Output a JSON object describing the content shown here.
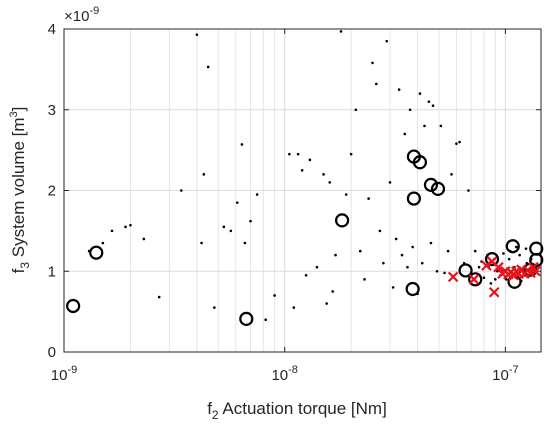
{
  "chart_data": {
    "type": "scatter",
    "title": "",
    "xlabel": {
      "prefix": "f",
      "sub": "2",
      "text": " Actuation torque [Nm]"
    },
    "ylabel": {
      "prefix": "f",
      "sub": "3",
      "text": " System volume [m",
      "sup": "3",
      "suffix": "]"
    },
    "exponent_label": {
      "base": "×10",
      "exp": "-9"
    },
    "x_scale": "log",
    "xlim": [
      1e-09,
      1.45e-07
    ],
    "ylim": [
      0,
      4
    ],
    "x_ticks": [
      {
        "value": 1e-09,
        "base": "10",
        "exp": "-9"
      },
      {
        "value": 1e-08,
        "base": "10",
        "exp": "-8"
      },
      {
        "value": 1e-07,
        "base": "10",
        "exp": "-7"
      }
    ],
    "y_ticks": [
      "0",
      "1",
      "2",
      "3",
      "4"
    ],
    "y_tick_values": [
      0,
      1,
      2,
      3,
      4
    ],
    "grid": true,
    "colors": {
      "dots": "#000000",
      "circles": "#000000",
      "crosses": "#e8121b",
      "grid": "#e5e5e5",
      "axes": "#262626"
    },
    "series": [
      {
        "marker": "dot",
        "points": [
          [
            1.3e-09,
            1.25
          ],
          [
            1.5e-09,
            1.35
          ],
          [
            1.65e-09,
            1.5
          ],
          [
            1.9e-09,
            1.55
          ],
          [
            2e-09,
            1.57
          ],
          [
            2.3e-09,
            1.4
          ],
          [
            2.7e-09,
            0.68
          ],
          [
            3.4e-09,
            2.0
          ],
          [
            4e-09,
            3.93
          ],
          [
            4.2e-09,
            1.35
          ],
          [
            4.3e-09,
            2.2
          ],
          [
            4.5e-09,
            3.53
          ],
          [
            4.8e-09,
            0.55
          ],
          [
            5.3e-09,
            1.55
          ],
          [
            5.7e-09,
            1.5
          ],
          [
            6.1e-09,
            1.85
          ],
          [
            6.4e-09,
            2.57
          ],
          [
            6.6e-09,
            1.35
          ],
          [
            7e-09,
            1.62
          ],
          [
            7.5e-09,
            1.95
          ],
          [
            8.2e-09,
            0.4
          ],
          [
            9e-09,
            0.7
          ],
          [
            1.05e-08,
            2.45
          ],
          [
            1.1e-08,
            0.55
          ],
          [
            1.15e-08,
            2.45
          ],
          [
            1.2e-08,
            2.25
          ],
          [
            1.25e-08,
            0.95
          ],
          [
            1.3e-08,
            2.38
          ],
          [
            1.4e-08,
            1.05
          ],
          [
            1.5e-08,
            2.2
          ],
          [
            1.55e-08,
            0.6
          ],
          [
            1.6e-08,
            2.1
          ],
          [
            1.65e-08,
            0.75
          ],
          [
            1.7e-08,
            1.2
          ],
          [
            1.8e-08,
            3.97
          ],
          [
            1.9e-08,
            1.95
          ],
          [
            2e-08,
            2.45
          ],
          [
            2.1e-08,
            3.0
          ],
          [
            2.2e-08,
            1.25
          ],
          [
            2.3e-08,
            0.9
          ],
          [
            2.4e-08,
            1.9
          ],
          [
            2.5e-08,
            3.58
          ],
          [
            2.6e-08,
            3.32
          ],
          [
            2.7e-08,
            1.5
          ],
          [
            2.8e-08,
            1.1
          ],
          [
            2.9e-08,
            3.85
          ],
          [
            3e-08,
            2.1
          ],
          [
            3.1e-08,
            0.8
          ],
          [
            3.2e-08,
            1.4
          ],
          [
            3.3e-08,
            3.25
          ],
          [
            3.4e-08,
            1.2
          ],
          [
            3.5e-08,
            2.7
          ],
          [
            3.6e-08,
            1.05
          ],
          [
            3.7e-08,
            3.0
          ],
          [
            3.8e-08,
            1.3
          ],
          [
            4e-08,
            0.72
          ],
          [
            4.1e-08,
            3.2
          ],
          [
            4.2e-08,
            1.1
          ],
          [
            4.3e-08,
            2.8
          ],
          [
            4.5e-08,
            3.1
          ],
          [
            4.6e-08,
            1.35
          ],
          [
            4.7e-08,
            3.05
          ],
          [
            4.9e-08,
            1.0
          ],
          [
            5.1e-08,
            2.8
          ],
          [
            5.3e-08,
            0.98
          ],
          [
            5.5e-08,
            1.25
          ],
          [
            5.7e-08,
            2.2
          ],
          [
            6e-08,
            2.58
          ],
          [
            6.2e-08,
            2.6
          ],
          [
            6.5e-08,
            1.1
          ],
          [
            6.8e-08,
            2.0
          ],
          [
            7e-08,
            0.95
          ],
          [
            7.3e-08,
            1.25
          ],
          [
            7.6e-08,
            1.05
          ],
          [
            8e-08,
            0.92
          ],
          [
            8.3e-08,
            1.2
          ],
          [
            8.6e-08,
            0.85
          ],
          [
            8.9e-08,
            1.15
          ],
          [
            9.2e-08,
            1.0
          ],
          [
            9.5e-08,
            0.95
          ],
          [
            9.8e-08,
            1.22
          ],
          [
            1.01e-07,
            0.9
          ],
          [
            1.04e-07,
            1.15
          ],
          [
            1.07e-07,
            0.98
          ],
          [
            1.1e-07,
            1.05
          ],
          [
            1.13e-07,
            0.92
          ],
          [
            1.16e-07,
            1.2
          ],
          [
            1.19e-07,
            1.02
          ],
          [
            1.22e-07,
            0.95
          ],
          [
            1.25e-07,
            1.1
          ],
          [
            1.28e-07,
            1.0
          ],
          [
            1.31e-07,
            1.15
          ],
          [
            1.34e-07,
            0.98
          ],
          [
            8.4e-08,
            1.05
          ],
          [
            7.8e-08,
            1.12
          ],
          [
            9e-08,
            0.9
          ],
          [
            1.05e-07,
            1.25
          ],
          [
            1.12e-07,
            1.3
          ],
          [
            1.18e-07,
            0.88
          ],
          [
            1.24e-07,
            1.28
          ]
        ]
      },
      {
        "marker": "circle",
        "points": [
          [
            1.1e-09,
            0.57
          ],
          [
            1.4e-09,
            1.23
          ],
          [
            6.7e-09,
            0.41
          ],
          [
            1.82e-08,
            1.63
          ],
          [
            3.85e-08,
            2.42
          ],
          [
            4.1e-08,
            2.35
          ],
          [
            3.85e-08,
            1.9
          ],
          [
            4.6e-08,
            2.07
          ],
          [
            4.95e-08,
            2.02
          ],
          [
            3.8e-08,
            0.78
          ],
          [
            6.6e-08,
            1.01
          ],
          [
            7.3e-08,
            0.9
          ],
          [
            8.7e-08,
            1.15
          ],
          [
            1.08e-07,
            1.31
          ],
          [
            1.1e-07,
            0.87
          ],
          [
            1.3e-07,
            1.02
          ],
          [
            1.38e-07,
            1.28
          ],
          [
            1.38e-07,
            1.14
          ]
        ]
      },
      {
        "marker": "cross",
        "points": [
          [
            5.8e-08,
            0.93
          ],
          [
            7.2e-08,
            0.9
          ],
          [
            8.2e-08,
            1.07
          ],
          [
            8.7e-08,
            1.12
          ],
          [
            8.9e-08,
            0.74
          ],
          [
            9.3e-08,
            1.05
          ],
          [
            9.7e-08,
            0.97
          ],
          [
            1e-07,
            1.0
          ],
          [
            1.03e-07,
            0.96
          ],
          [
            1.06e-07,
            0.99
          ],
          [
            1.09e-07,
            0.95
          ],
          [
            1.12e-07,
            1.0
          ],
          [
            1.15e-07,
            0.97
          ],
          [
            1.18e-07,
            1.02
          ],
          [
            1.22e-07,
            0.97
          ],
          [
            1.26e-07,
            1.01
          ],
          [
            1.3e-07,
            0.98
          ],
          [
            1.34e-07,
            1.05
          ],
          [
            1.37e-07,
            1.0
          ]
        ]
      }
    ]
  }
}
